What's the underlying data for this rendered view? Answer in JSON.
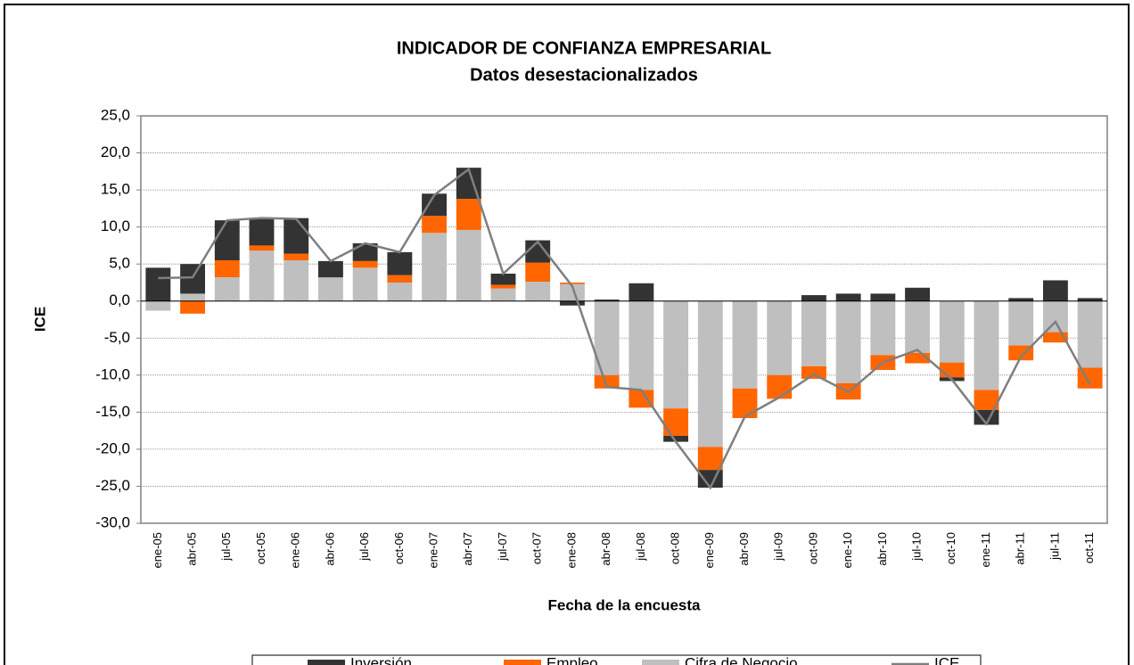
{
  "chart_data": {
    "type": "bar",
    "stacked": true,
    "title": "INDICADOR DE CONFIANZA EMPRESARIAL",
    "subtitle": "Datos desestacionalizados",
    "x_label": "Fecha de la encuesta",
    "y_label": "ICE",
    "categories": [
      "ene-05",
      "abr-05",
      "jul-05",
      "oct-05",
      "ene-06",
      "abr-06",
      "jul-06",
      "oct-06",
      "ene-07",
      "abr-07",
      "jul-07",
      "oct-07",
      "ene-08",
      "abr-08",
      "jul-08",
      "oct-08",
      "ene-09",
      "abr-09",
      "jul-09",
      "oct-09",
      "ene-10",
      "abr-10",
      "jul-10",
      "oct-10",
      "ene-11",
      "abr-11",
      "jul-11",
      "oct-11"
    ],
    "series": [
      {
        "name": "Inversión",
        "color": "#333333",
        "values": [
          4.5,
          4.0,
          5.4,
          3.7,
          4.8,
          2.2,
          2.4,
          3.1,
          3.0,
          4.2,
          1.5,
          3.0,
          -0.6,
          0.2,
          2.4,
          -0.8,
          -2.4,
          0,
          0,
          0.8,
          1.0,
          1.0,
          1.8,
          -0.5,
          -2.0,
          0.4,
          2.8,
          0.4
        ]
      },
      {
        "name": "Empleo",
        "color": "#ff6600",
        "values": [
          0,
          -1.7,
          2.3,
          0.7,
          0.9,
          0,
          0.9,
          1.0,
          2.3,
          4.2,
          0.5,
          2.6,
          0.2,
          -1.8,
          -2.4,
          -3.7,
          -3.1,
          -4.0,
          -3.2,
          -1.7,
          -2.2,
          -2.0,
          -1.4,
          -2.0,
          -2.7,
          -2.0,
          -1.4,
          -2.8
        ]
      },
      {
        "name": "Cifra de Negocio",
        "color": "#bfbfbf",
        "values": [
          -1.3,
          1.0,
          3.2,
          6.8,
          5.5,
          3.2,
          4.5,
          2.5,
          9.2,
          9.6,
          1.7,
          2.6,
          2.3,
          -10.0,
          -12.0,
          -14.5,
          -19.7,
          -11.8,
          -10.0,
          -8.8,
          -11.1,
          -7.3,
          -7.0,
          -8.3,
          -12.0,
          -6.0,
          -4.2,
          -9.0
        ]
      },
      {
        "name": "ICE",
        "type": "line",
        "color": "#7f7f7f",
        "values": [
          3.1,
          3.2,
          10.9,
          11.2,
          11.1,
          5.4,
          7.8,
          6.6,
          14.3,
          17.8,
          3.7,
          8.0,
          2.0,
          -11.6,
          -12.0,
          -19.0,
          -25.2,
          -15.6,
          -13.0,
          -9.9,
          -12.3,
          -8.3,
          -6.6,
          -10.6,
          -16.6,
          -7.5,
          -2.8,
          -11.3
        ]
      }
    ],
    "ylim": [
      -30,
      25
    ],
    "yticks": [
      {
        "value": -30,
        "label": "-30,0"
      },
      {
        "value": -25,
        "label": "-25,0"
      },
      {
        "value": -20,
        "label": "-20,0"
      },
      {
        "value": -15,
        "label": "-15,0"
      },
      {
        "value": -10,
        "label": "-10,0"
      },
      {
        "value": -5,
        "label": "-5,0"
      },
      {
        "value": 0,
        "label": "0,0"
      },
      {
        "value": 5,
        "label": "5,0"
      },
      {
        "value": 10,
        "label": "10,0"
      },
      {
        "value": 15,
        "label": "15,0"
      },
      {
        "value": 20,
        "label": "20,0"
      },
      {
        "value": 25,
        "label": "25,0"
      }
    ],
    "grid": true,
    "legend": "bottom"
  }
}
